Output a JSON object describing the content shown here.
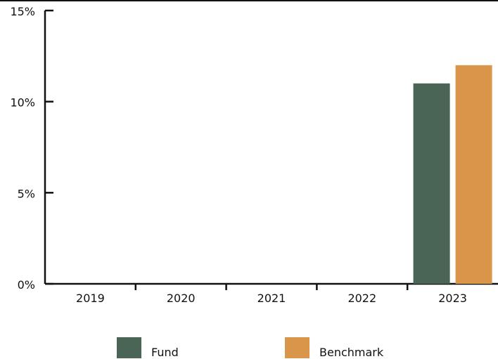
{
  "chart_data": {
    "type": "bar",
    "categories": [
      "2019",
      "2020",
      "2021",
      "2022",
      "2023"
    ],
    "series": [
      {
        "name": "Fund",
        "values": [
          0,
          0,
          0,
          0,
          11
        ],
        "color": "#4a6455"
      },
      {
        "name": "Benchmark",
        "values": [
          0,
          0,
          0,
          0,
          12
        ],
        "color": "#d9954a"
      }
    ],
    "ylim": [
      0,
      15
    ],
    "yticks": [
      0,
      5,
      10,
      15
    ],
    "ytick_labels": [
      "0%",
      "5%",
      "10%",
      "15%"
    ],
    "grid": false,
    "legend_position": "bottom"
  }
}
